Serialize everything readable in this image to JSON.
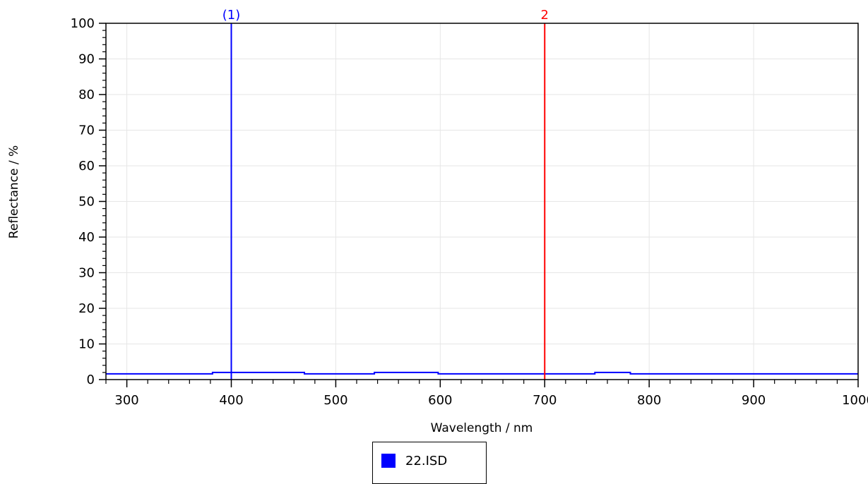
{
  "chart_data": {
    "type": "line",
    "xlabel": "Wavelength / nm",
    "ylabel": "Reflectance / %",
    "xlim": [
      280,
      1000
    ],
    "ylim": [
      0,
      100
    ],
    "x_ticks": [
      300,
      400,
      500,
      600,
      700,
      800,
      900,
      1000
    ],
    "y_ticks": [
      0,
      10,
      20,
      30,
      40,
      50,
      60,
      70,
      80,
      90,
      100
    ],
    "grid": true,
    "legend_position": "bottom-center",
    "series": [
      {
        "name": "22.ISD",
        "color": "#0000ff",
        "x": [
          280,
          382,
          382,
          470,
          470,
          537,
          537,
          598,
          598,
          748,
          748,
          782,
          782,
          1000
        ],
        "y": [
          1.6,
          1.6,
          2.0,
          2.0,
          1.6,
          1.6,
          2.0,
          2.0,
          1.6,
          1.6,
          2.0,
          2.0,
          1.6,
          1.6
        ]
      }
    ],
    "markers": [
      {
        "x": 400,
        "label": "(1)",
        "color": "#0000ff"
      },
      {
        "x": 700,
        "label": "2",
        "color": "#ff0000"
      }
    ]
  }
}
